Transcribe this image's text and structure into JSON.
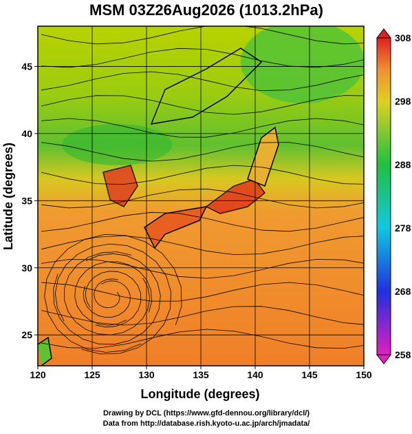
{
  "chart_data": {
    "type": "map",
    "title": "MSM 03Z26Aug2026 (1013.2hPa)",
    "xlabel": "Longitude (degrees)",
    "ylabel": "Latitude  (degrees)",
    "xlim": [
      120,
      150
    ],
    "xticks": [
      120,
      125,
      130,
      135,
      140,
      145,
      150
    ],
    "ylim": [
      22.7,
      48
    ],
    "yticks": [
      25,
      30,
      35,
      40,
      45
    ],
    "grid": true,
    "colorbar": {
      "lim": [
        258,
        308
      ],
      "ticks": [
        258,
        268,
        278,
        288,
        298,
        308
      ]
    },
    "credits": [
      "Drawing by DCL (https://www.gfd-dennou.org/library/dcl/)",
      "Data from http://database.rish.kyoto-u.ac.jp/arch/jmadata/"
    ]
  }
}
